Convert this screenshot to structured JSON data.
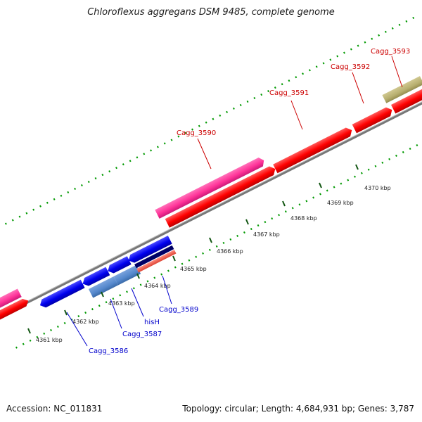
{
  "title": "Chloroflexus aggregans DSM 9485, complete genome",
  "footer": {
    "accession": "Accession: NC_011831",
    "summary": "Topology: circular; Length: 4,684,931 bp; Genes: 3,787"
  },
  "scale_labels": [
    "4361 kbp",
    "4362 kbp",
    "4363 kbp",
    "4364 kbp",
    "4365 kbp",
    "4366 kbp",
    "4367 kbp",
    "4368 kbp",
    "4369 kbp",
    "4370 kbp"
  ],
  "gene_labels": {
    "cagg_3586": "Cagg_3586",
    "cagg_3587": "Cagg_3587",
    "hisH": "hisH",
    "cagg_3589": "Cagg_3589",
    "cagg_3590": "Cagg_3590",
    "cagg_3591": "Cagg_3591",
    "cagg_3592": "Cagg_3592",
    "cagg_3593": "Cagg_3593"
  },
  "colors": {
    "forward_gene": "#ff0000",
    "reverse_gene": "#0000ee",
    "highlight_pink": "#ff3399",
    "highlight_blue": "#5588cc",
    "olive": "#b8b070",
    "navy": "#000066",
    "salmon": "#ff6655",
    "backbone": "#888888",
    "tick_green": "#009900",
    "tick_dark": "#115511"
  }
}
